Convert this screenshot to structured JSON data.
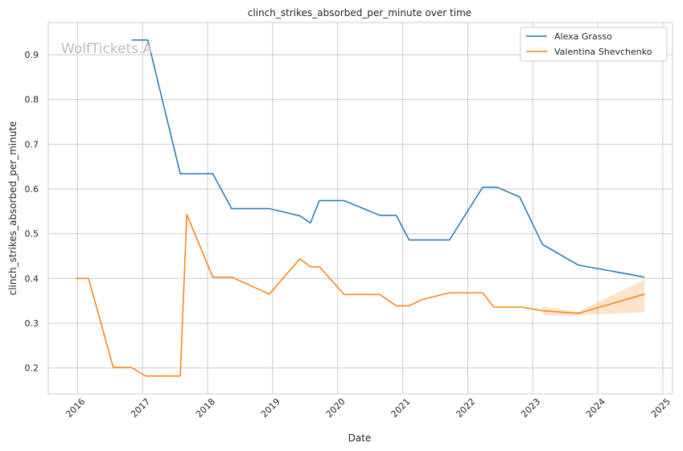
{
  "chart_data": {
    "type": "line",
    "title": "clinch_strikes_absorbed_per_minute over time",
    "xlabel": "Date",
    "ylabel": "clinch_strikes_absorbed_per_minute",
    "watermark": "WolfTickets.A",
    "grid": true,
    "legend_position": "top-right",
    "xlim": [
      2015.55,
      2025.15
    ],
    "ylim": [
      0.142,
      0.972
    ],
    "x_ticks": [
      2016,
      2017,
      2018,
      2019,
      2020,
      2021,
      2022,
      2023,
      2024,
      2025
    ],
    "x_tick_labels": [
      "2016",
      "2017",
      "2018",
      "2019",
      "2020",
      "2021",
      "2022",
      "2023",
      "2024",
      "2025"
    ],
    "y_ticks": [
      0.2,
      0.3,
      0.4,
      0.5,
      0.6,
      0.7,
      0.8,
      0.9
    ],
    "y_tick_labels": [
      "0.2",
      "0.3",
      "0.4",
      "0.5",
      "0.6",
      "0.7",
      "0.8",
      "0.9"
    ],
    "series": [
      {
        "name": "Alexa Grasso",
        "color": "#1f77b4",
        "x": [
          2016.83,
          2017.08,
          2017.58,
          2018.08,
          2018.37,
          2018.95,
          2019.42,
          2019.58,
          2019.72,
          2020.1,
          2020.65,
          2020.9,
          2021.1,
          2021.72,
          2022.23,
          2022.45,
          2022.8,
          2023.15,
          2023.7,
          2024.72
        ],
        "values": [
          0.933,
          0.933,
          0.634,
          0.634,
          0.556,
          0.556,
          0.54,
          0.524,
          0.574,
          0.574,
          0.541,
          0.541,
          0.486,
          0.486,
          0.604,
          0.604,
          0.582,
          0.476,
          0.43,
          0.403
        ]
      },
      {
        "name": "Valentina Shevchenko",
        "color": "#ff7f0e",
        "x": [
          2015.97,
          2016.17,
          2016.55,
          2016.83,
          2017.05,
          2017.58,
          2017.68,
          2018.08,
          2018.37,
          2018.95,
          2019.42,
          2019.58,
          2019.72,
          2020.1,
          2020.65,
          2020.9,
          2021.1,
          2021.3,
          2021.72,
          2022.23,
          2022.4,
          2022.83,
          2023.15,
          2023.7,
          2024.72
        ],
        "values": [
          0.4,
          0.4,
          0.201,
          0.201,
          0.182,
          0.182,
          0.543,
          0.403,
          0.403,
          0.365,
          0.444,
          0.426,
          0.426,
          0.364,
          0.364,
          0.339,
          0.339,
          0.353,
          0.368,
          0.368,
          0.336,
          0.336,
          0.328,
          0.322,
          0.365
        ],
        "confidence_band": {
          "x": [
            2023.15,
            2023.7,
            2024.72
          ],
          "lower": [
            0.318,
            0.318,
            0.325
          ],
          "upper": [
            0.337,
            0.325,
            0.398
          ]
        }
      }
    ]
  }
}
